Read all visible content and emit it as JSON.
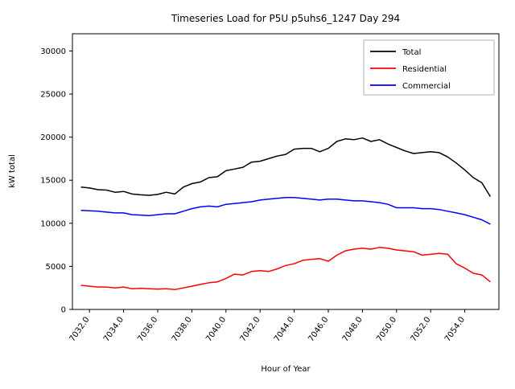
{
  "chart_data": {
    "type": "line",
    "title": "Timeseries Load for P5U p5uhs6_1247  Day 294",
    "xlabel": "Hour of Year",
    "ylabel": "kW total",
    "xlim": [
      7031.0,
      7056.0
    ],
    "ylim": [
      0,
      32000
    ],
    "grid": false,
    "xticks": [
      7032,
      7034,
      7036,
      7038,
      7040,
      7042,
      7044,
      7046,
      7048,
      7050,
      7052,
      7054
    ],
    "xtick_labels": [
      "7032.0",
      "7034.0",
      "7036.0",
      "7038.0",
      "7040.0",
      "7042.0",
      "7044.0",
      "7046.0",
      "7048.0",
      "7050.0",
      "7052.0",
      "7054.0"
    ],
    "yticks": [
      0,
      5000,
      10000,
      15000,
      20000,
      25000,
      30000
    ],
    "ytick_labels": [
      "0",
      "5000",
      "10000",
      "15000",
      "20000",
      "25000",
      "30000"
    ],
    "legend": {
      "position": "upper right",
      "entries": [
        {
          "label": "Total",
          "color": "#000000"
        },
        {
          "label": "Residential",
          "color": "#ff0000"
        },
        {
          "label": "Commercial",
          "color": "#0000ff"
        }
      ]
    },
    "x": [
      7031.5,
      7032.0,
      7032.5,
      7033.0,
      7033.5,
      7034.0,
      7034.5,
      7035.0,
      7035.5,
      7036.0,
      7036.5,
      7037.0,
      7037.5,
      7038.0,
      7038.5,
      7039.0,
      7039.5,
      7040.0,
      7040.5,
      7041.0,
      7041.5,
      7042.0,
      7042.5,
      7043.0,
      7043.5,
      7044.0,
      7044.5,
      7045.0,
      7045.5,
      7046.0,
      7046.5,
      7047.0,
      7047.5,
      7048.0,
      7048.5,
      7049.0,
      7049.5,
      7050.0,
      7050.5,
      7051.0,
      7051.5,
      7052.0,
      7052.5,
      7053.0,
      7053.5,
      7054.0,
      7054.5,
      7055.0,
      7055.5
    ],
    "series": [
      {
        "name": "Total",
        "color": "#000000",
        "values": [
          14200,
          14100,
          13900,
          13850,
          13600,
          13700,
          13400,
          13300,
          13250,
          13350,
          13600,
          13400,
          14200,
          14600,
          14800,
          15300,
          15400,
          16100,
          16300,
          16500,
          17100,
          17200,
          17500,
          17800,
          18000,
          18600,
          18700,
          18700,
          18300,
          18700,
          19500,
          19800,
          19700,
          19900,
          19500,
          19700,
          19200,
          18800,
          18400,
          18100,
          18200,
          18300,
          18200,
          17700,
          17000,
          16200,
          15300,
          14700,
          13100
        ]
      },
      {
        "name": "Residential",
        "color": "#ff0000",
        "values": [
          2800,
          2700,
          2600,
          2600,
          2500,
          2600,
          2400,
          2450,
          2400,
          2350,
          2400,
          2300,
          2500,
          2700,
          2900,
          3100,
          3200,
          3600,
          4100,
          4000,
          4400,
          4500,
          4400,
          4700,
          5100,
          5300,
          5700,
          5800,
          5900,
          5600,
          6300,
          6800,
          7000,
          7100,
          7000,
          7200,
          7100,
          6900,
          6800,
          6700,
          6300,
          6400,
          6500,
          6400,
          5300,
          4800,
          4200,
          4000,
          3200
        ]
      },
      {
        "name": "Commercial",
        "color": "#0000ff",
        "values": [
          11500,
          11450,
          11400,
          11300,
          11200,
          11200,
          11000,
          10950,
          10900,
          11000,
          11100,
          11100,
          11400,
          11700,
          11900,
          12000,
          11900,
          12200,
          12300,
          12400,
          12500,
          12700,
          12800,
          12900,
          13000,
          13000,
          12900,
          12800,
          12700,
          12800,
          12800,
          12700,
          12600,
          12600,
          12500,
          12400,
          12200,
          11800,
          11800,
          11800,
          11700,
          11700,
          11600,
          11400,
          11200,
          11000,
          10700,
          10400,
          9900
        ]
      }
    ]
  }
}
